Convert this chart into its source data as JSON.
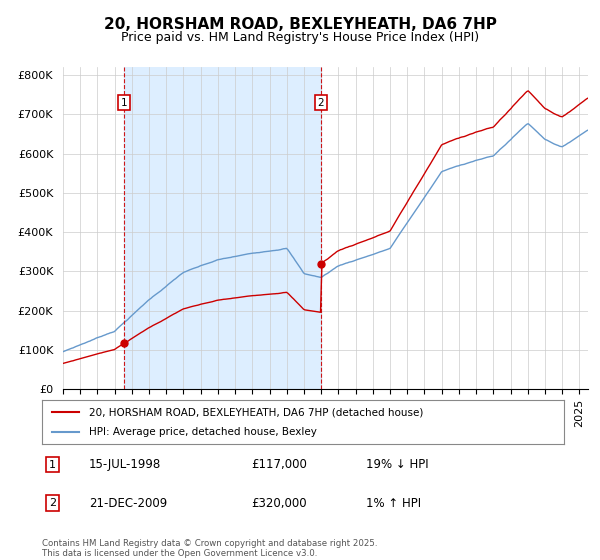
{
  "title_line1": "20, HORSHAM ROAD, BEXLEYHEATH, DA6 7HP",
  "title_line2": "Price paid vs. HM Land Registry's House Price Index (HPI)",
  "ylim": [
    0,
    820000
  ],
  "yticks": [
    0,
    100000,
    200000,
    300000,
    400000,
    500000,
    600000,
    700000,
    800000
  ],
  "ytick_labels": [
    "£0",
    "£100K",
    "£200K",
    "£300K",
    "£400K",
    "£500K",
    "£600K",
    "£700K",
    "£800K"
  ],
  "sale1_date": 1998.54,
  "sale1_price": 117000,
  "sale2_date": 2009.97,
  "sale2_price": 320000,
  "legend_line1": "20, HORSHAM ROAD, BEXLEYHEATH, DA6 7HP (detached house)",
  "legend_line2": "HPI: Average price, detached house, Bexley",
  "footer": "Contains HM Land Registry data © Crown copyright and database right 2025.\nThis data is licensed under the Open Government Licence v3.0.",
  "red_color": "#cc0000",
  "blue_color": "#6699cc",
  "shaded_color": "#ddeeff",
  "bg_color": "#ffffff",
  "grid_color": "#cccccc",
  "title_fontsize": 11,
  "axis_fontsize": 8,
  "xstart": 1995,
  "xend": 2025.5
}
